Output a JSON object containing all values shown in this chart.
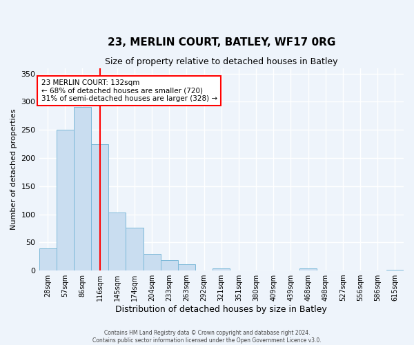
{
  "title": "23, MERLIN COURT, BATLEY, WF17 0RG",
  "subtitle": "Size of property relative to detached houses in Batley",
  "xlabel": "Distribution of detached houses by size in Batley",
  "ylabel": "Number of detached properties",
  "bin_labels": [
    "28sqm",
    "57sqm",
    "86sqm",
    "116sqm",
    "145sqm",
    "174sqm",
    "204sqm",
    "233sqm",
    "263sqm",
    "292sqm",
    "321sqm",
    "351sqm",
    "380sqm",
    "409sqm",
    "439sqm",
    "468sqm",
    "498sqm",
    "527sqm",
    "556sqm",
    "586sqm",
    "615sqm"
  ],
  "bar_values": [
    39,
    250,
    291,
    225,
    103,
    76,
    29,
    18,
    11,
    0,
    4,
    0,
    0,
    0,
    0,
    4,
    0,
    0,
    0,
    0,
    1
  ],
  "bar_color": "#c9ddf0",
  "bar_edge_color": "#7ab8d8",
  "vline_x": 3.5,
  "vline_color": "red",
  "annotation_text": "23 MERLIN COURT: 132sqm\n← 68% of detached houses are smaller (720)\n31% of semi-detached houses are larger (328) →",
  "annotation_box_color": "white",
  "annotation_box_edge_color": "red",
  "ylim": [
    0,
    360
  ],
  "yticks": [
    0,
    50,
    100,
    150,
    200,
    250,
    300,
    350
  ],
  "footer_line1": "Contains HM Land Registry data © Crown copyright and database right 2024.",
  "footer_line2": "Contains public sector information licensed under the Open Government Licence v3.0.",
  "background_color": "#eef4fb",
  "grid_color": "white",
  "fig_width": 6.0,
  "fig_height": 5.0,
  "dpi": 100
}
